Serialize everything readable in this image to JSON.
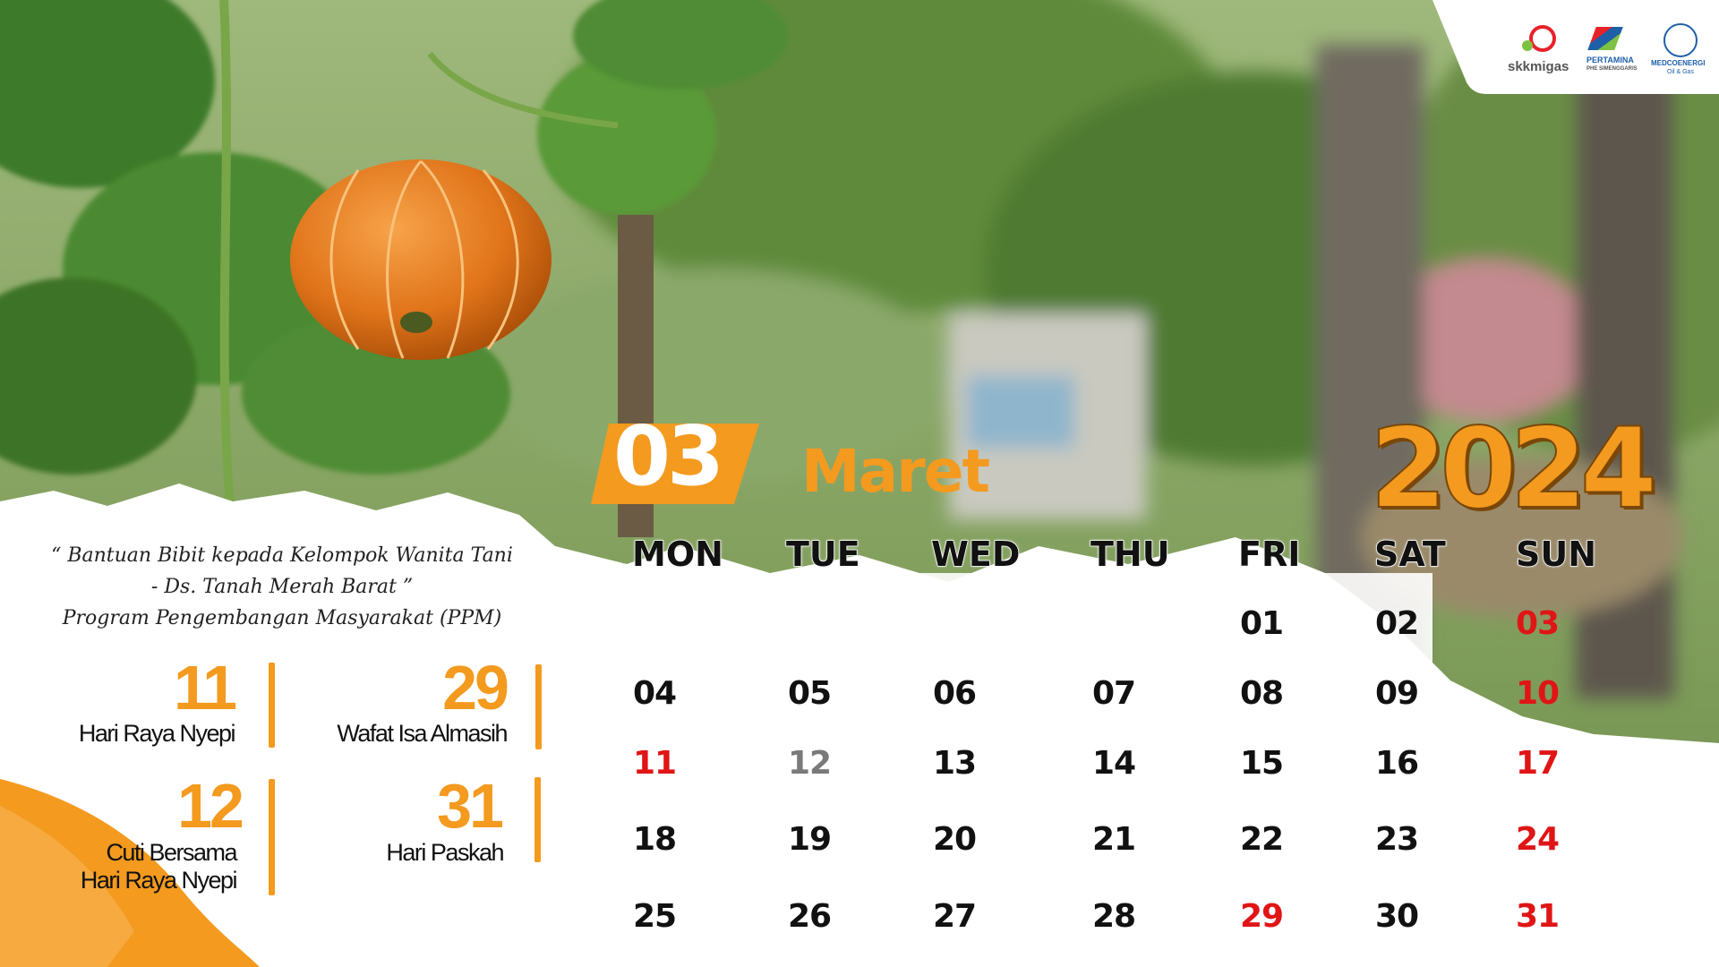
{
  "calendar": {
    "month_number": "03",
    "month_name": "Maret",
    "year": "2024",
    "weekdays": [
      "MON",
      "TUE",
      "WED",
      "THU",
      "FRI",
      "SAT",
      "SUN"
    ],
    "weeks": [
      [
        "",
        "",
        "",
        "",
        "01",
        "02",
        "03"
      ],
      [
        "04",
        "05",
        "06",
        "07",
        "08",
        "09",
        "10"
      ],
      [
        "11",
        "12",
        "13",
        "14",
        "15",
        "16",
        "17"
      ],
      [
        "18",
        "19",
        "20",
        "21",
        "22",
        "23",
        "24"
      ],
      [
        "25",
        "26",
        "27",
        "28",
        "29",
        "30",
        "31"
      ]
    ],
    "red_days": [
      "03",
      "10",
      "11",
      "17",
      "24",
      "29",
      "31"
    ],
    "gray_days": [
      "12"
    ]
  },
  "caption": {
    "line1": "“ Bantuan Bibit kepada Kelompok Wanita Tani",
    "line2": "- Ds. Tanah Merah Barat ”",
    "line3": "Program Pengembangan Masyarakat (PPM)"
  },
  "holidays": [
    {
      "day": "11",
      "label_lines": [
        "Hari Raya Nyepi"
      ]
    },
    {
      "day": "29",
      "label_lines": [
        "Wafat Isa Almasih"
      ]
    },
    {
      "day": "12",
      "label_lines": [
        "Cuti Bersama",
        "Hari Raya Nyepi"
      ]
    },
    {
      "day": "31",
      "label_lines": [
        "Hari Paskah"
      ]
    }
  ],
  "logos": {
    "skkmigas": "skkmigas",
    "pertamina": "PERTAMINA",
    "pertamina_sub": "PHE SIMENGGARIS",
    "medco": "MEDCOENERGI",
    "medco_sub": "Oil & Gas"
  },
  "colors": {
    "accent_orange": "#f39a1f",
    "holiday_red": "#e01515"
  }
}
